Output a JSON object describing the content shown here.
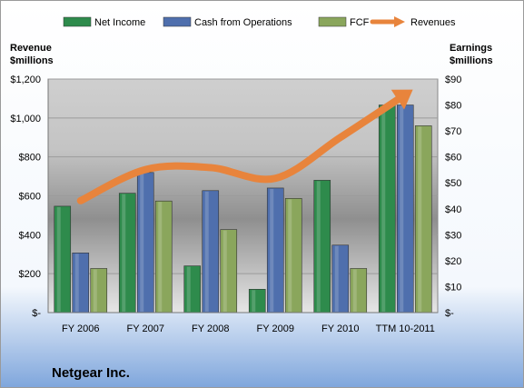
{
  "chart_data": {
    "type": "bar",
    "title": "Netgear Inc.",
    "categories": [
      "FY 2006",
      "FY 2007",
      "FY 2008",
      "FY 2009",
      "FY 2010",
      "TTM 10-2011"
    ],
    "series": [
      {
        "name": "Net Income",
        "axis": "right",
        "color": "#2e8b4c",
        "values": [
          41,
          46,
          18,
          9,
          51,
          80
        ]
      },
      {
        "name": "Cash from Operations",
        "axis": "right",
        "color": "#4f6fad",
        "values": [
          23,
          54,
          47,
          48,
          26,
          80
        ]
      },
      {
        "name": "FCF",
        "axis": "right",
        "color": "#8aa65c",
        "values": [
          17,
          43,
          32,
          44,
          17,
          72
        ]
      },
      {
        "name": "Revenues",
        "axis": "left",
        "type": "line",
        "color": "#e8843c",
        "values": [
          575,
          735,
          745,
          690,
          900,
          1120
        ]
      }
    ],
    "left_axis": {
      "label_line1": "Revenue",
      "label_line2": "$millions",
      "range": [
        0,
        1200
      ],
      "ticks": [
        "$-",
        "$200",
        "$400",
        "$600",
        "$800",
        "$1,000",
        "$1,200"
      ]
    },
    "right_axis": {
      "label_line1": "Earnings",
      "label_line2": "$millions",
      "range": [
        0,
        90
      ],
      "ticks": [
        "$-",
        "$10",
        "$20",
        "$30",
        "$40",
        "$50",
        "$60",
        "$70",
        "$80",
        "$90"
      ]
    },
    "grid": true,
    "legend_position": "top"
  }
}
